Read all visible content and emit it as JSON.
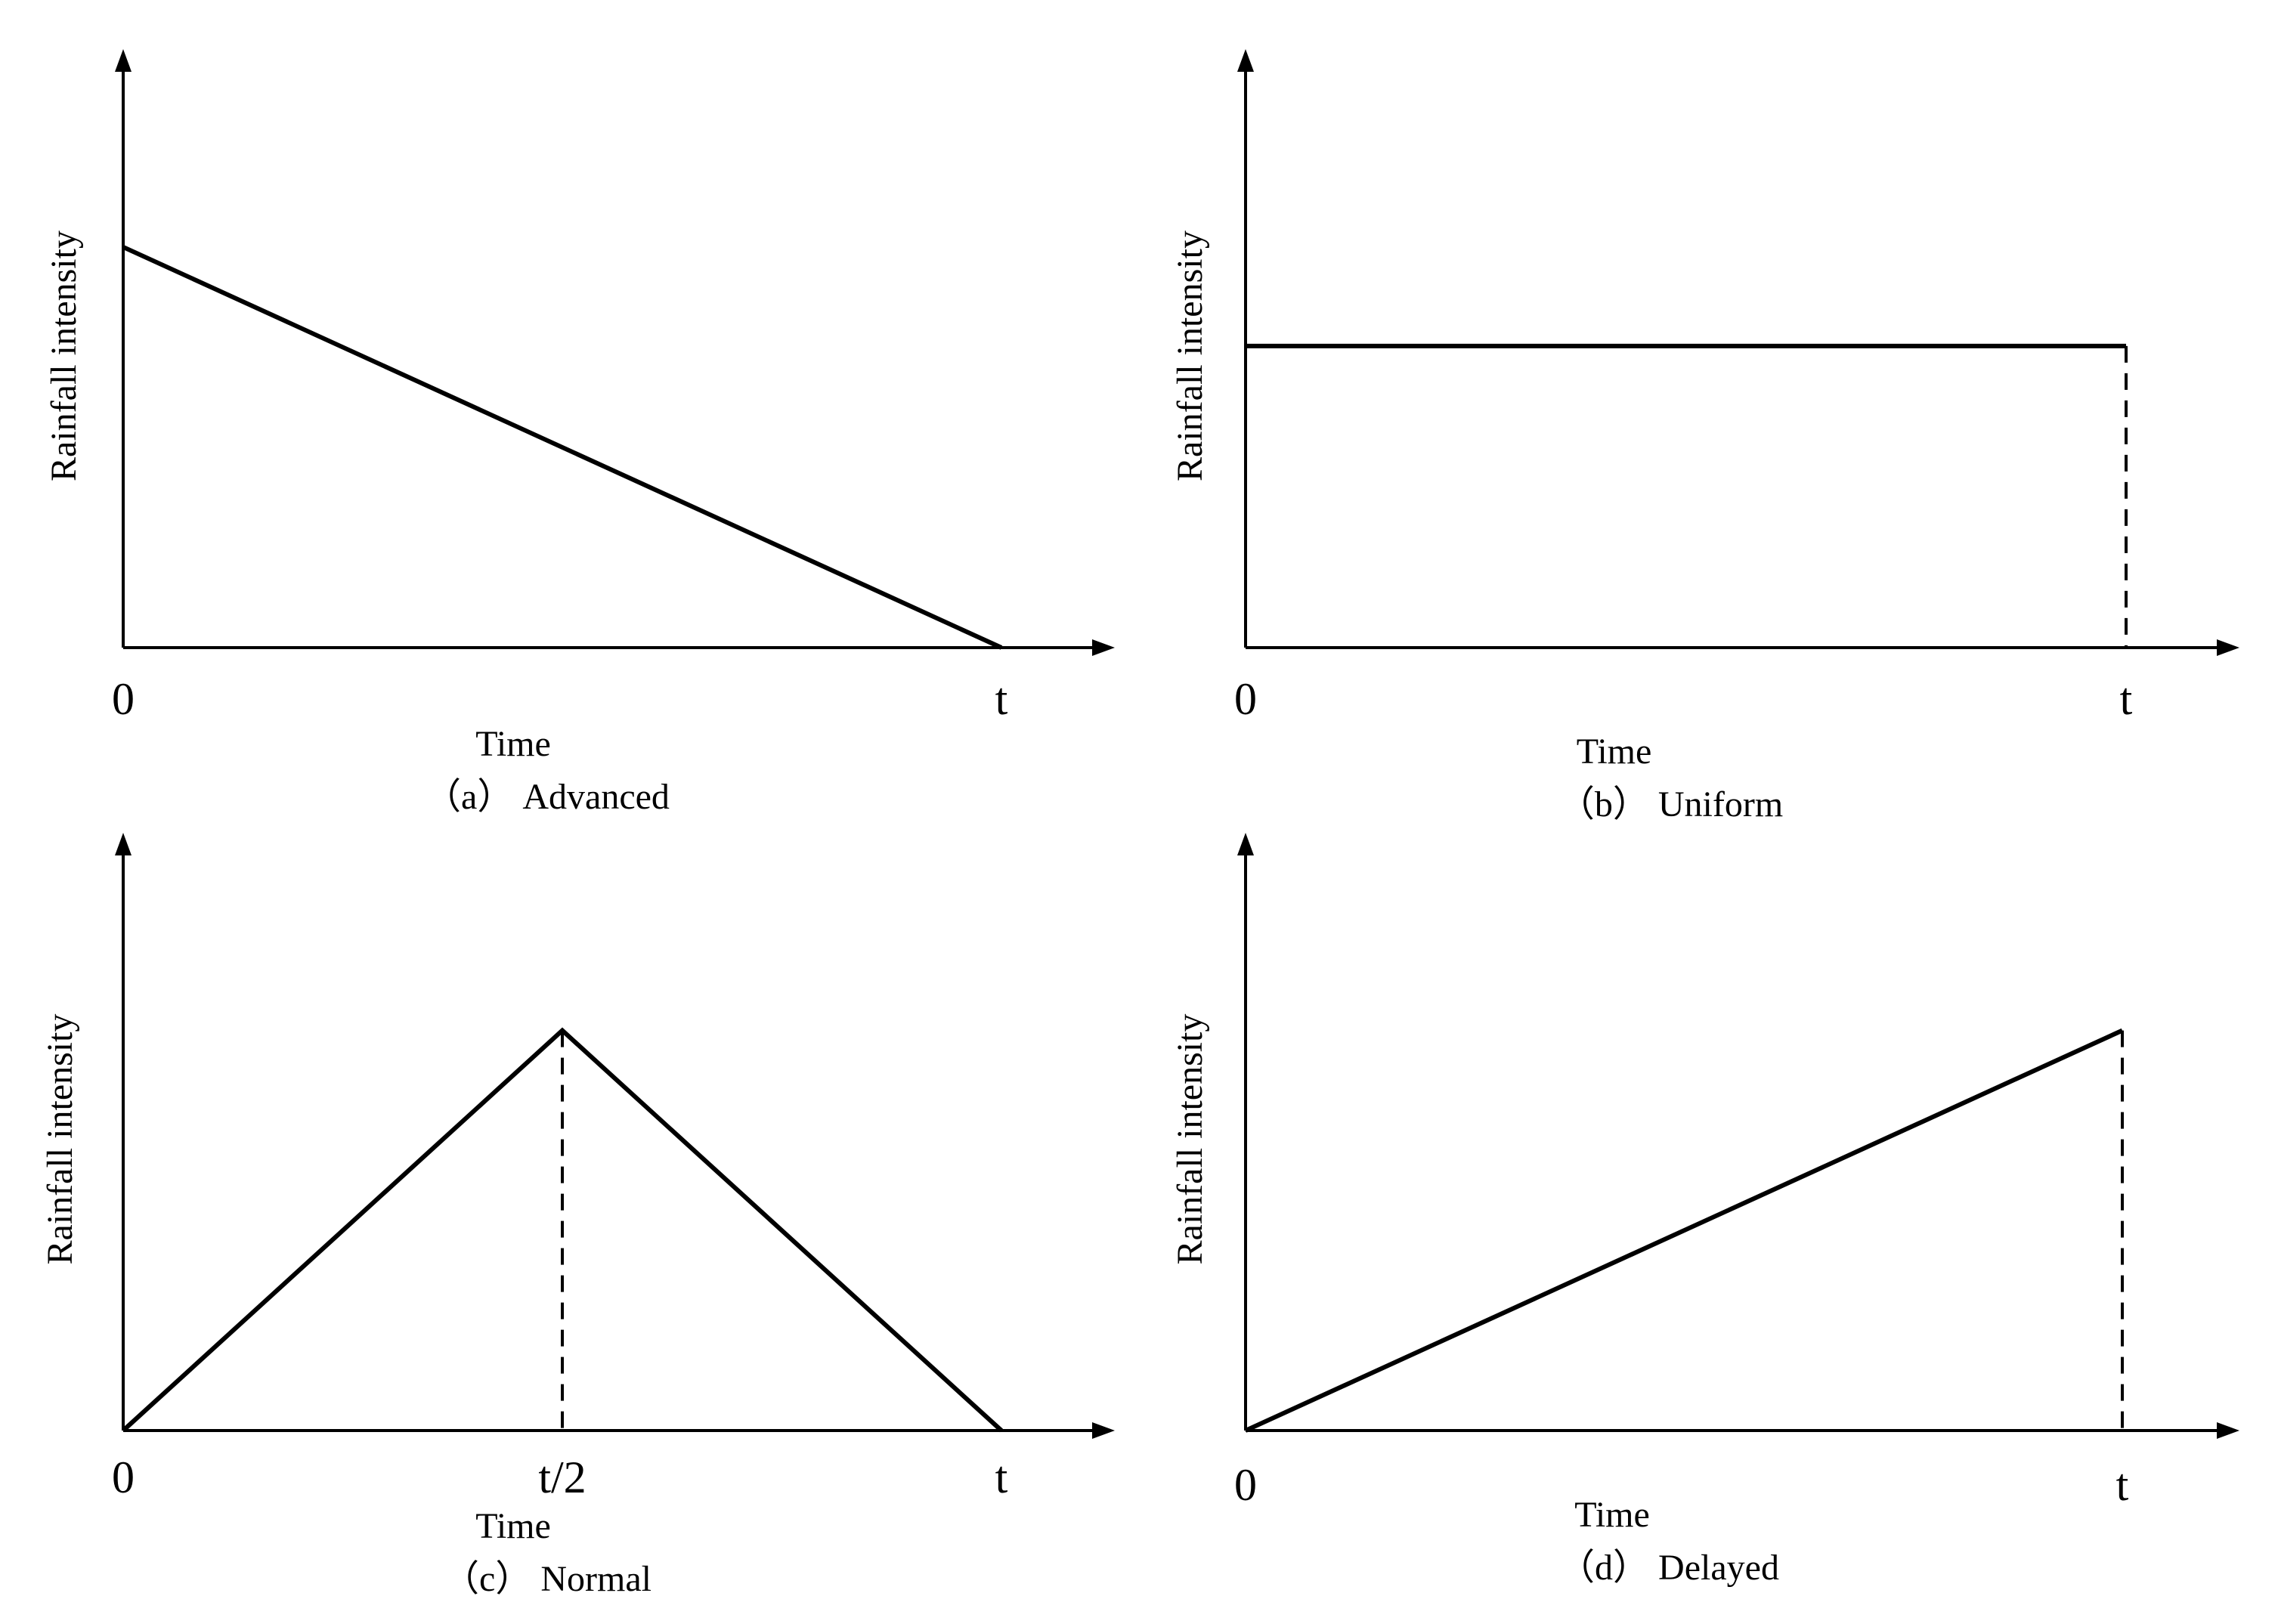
{
  "chart_data": [
    {
      "id": "a",
      "type": "line",
      "caption": "（a） Advanced",
      "xlabel": "Time",
      "ylabel": "Rainfall intensity",
      "x_ticks": [
        "0",
        "t"
      ],
      "x": [
        0,
        1
      ],
      "y": [
        0.85,
        0
      ],
      "ylim": [
        0,
        1.27
      ],
      "guides": []
    },
    {
      "id": "b",
      "type": "line",
      "caption": "（b） Uniform",
      "xlabel": "Time",
      "ylabel": "Rainfall intensity",
      "x_ticks": [
        "0",
        "t"
      ],
      "x": [
        0,
        1
      ],
      "y": [
        0.64,
        0.64
      ],
      "ylim": [
        0,
        1.27
      ],
      "guides": [
        {
          "x": 1,
          "y": 0.64
        }
      ]
    },
    {
      "id": "c",
      "type": "line",
      "caption": "（c） Normal",
      "xlabel": "Time",
      "ylabel": "Rainfall intensity",
      "x_ticks": [
        "0",
        "t/2",
        "t"
      ],
      "x": [
        0,
        0.5,
        1
      ],
      "y": [
        0,
        0.85,
        0
      ],
      "ylim": [
        0,
        1.27
      ],
      "guides": [
        {
          "x": 0.5,
          "y": 0.85
        }
      ]
    },
    {
      "id": "d",
      "type": "line",
      "caption": "（d） Delayed",
      "xlabel": "Time",
      "ylabel": "Rainfall intensity",
      "x_ticks": [
        "0",
        "t"
      ],
      "x": [
        0,
        1
      ],
      "y": [
        0,
        0.85
      ],
      "ylim": [
        0,
        1.27
      ],
      "guides": [
        {
          "x": 1,
          "y": 0.85
        }
      ]
    }
  ]
}
